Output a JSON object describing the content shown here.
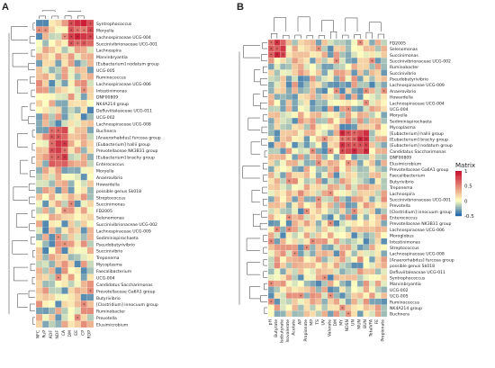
{
  "panels": [
    {
      "letter": "A",
      "columns": [
        "NFC",
        "RuP",
        "ADF",
        "NDF",
        "CA",
        "DM",
        "EE",
        "CP",
        "RDP"
      ],
      "rows": [
        "Syntrophococcus",
        "Moryella",
        "Lachnospiraceae UCG-004",
        "Succinivibrionaceae UCG-001",
        "Lachnospira",
        "Marvinbryantia",
        "[Eubacterium] nodatum group",
        "UCG-005",
        "Ruminococcus",
        "Lachnospiraceae UCG-006",
        "Intestinimonas",
        "DNF00809",
        "NK4A214 group",
        "Defluviitaleaceae UCG-011",
        "UCG-002",
        "Lachnospiraceae UCG-008",
        "Buchnera",
        "[Anaerorhabdus] furcosa group",
        "[Eubacterium] hallii group",
        "Prevotellaceae NK3B31 group",
        "[Eubacterium] brachy group",
        "Enterococcus",
        "Moryella",
        "Anaerovibrio",
        "Howardella",
        "possible genus Sk018",
        "Streptococcus",
        "Succinimonas",
        "FD2005",
        "Selenomonas",
        "Succinivibrionaceae UCG-002",
        "Lachnospiraceae UCG-009",
        "Sediminispirochaeta",
        "Pseudobutyrivibrio",
        "Succinivibrio",
        "Treponema",
        "Mycoplasma",
        "Faecalibacterium",
        "UCG-004",
        "Candidatus Saccharimonas",
        "Prevotellaceae Ga6A1 group",
        "Butyrivibrio",
        "[Clostridium] innocuum group",
        "Ruminobacter",
        "Prevotella",
        "Elusimicrobium"
      ]
    },
    {
      "letter": "B",
      "columns": [
        "pH",
        "Butyrate",
        "Isobutyrate",
        "Isovalerate",
        "Acetate",
        "AP",
        "Propionate",
        "MP",
        "TS",
        "UV",
        "Valerate",
        "DM",
        "MY",
        "NDSN",
        "UN",
        "MUN",
        "BUN",
        "TotalVFA",
        "FE",
        "Propionate"
      ],
      "rows": [
        "FD2005",
        "Selenomonas",
        "Succinimonas",
        "Succinivibrionaceae UCG-002",
        "Ruminobacter",
        "Succinivibrio",
        "Pseudobutyrivibrio",
        "Lachnospiraceae UCG-009",
        "Anaerovibrio",
        "Howardella",
        "Lachnospiraceae UCG-004",
        "UCG-004",
        "Moryella",
        "Sediminispirochaeta",
        "Mycoplasma",
        "[Eubacterium] hallii group",
        "[Eubacterium] brachy group",
        "[Eubacterium] nodatum group",
        "Candidatus Saccharimonas",
        "DNF00809",
        "Elusimicrobium",
        "Prevotellaceae Ga6A1 group",
        "Faecalibacterium",
        "Butyrivibrio",
        "Treponema",
        "Lachnospira",
        "Succinivibrionaceae UCG-001",
        "Prevotella",
        "[Clostridium] innocuum group",
        "Enterococcus",
        "Prevotellaceae NK3B31 group",
        "Lachnospiraceae UCG-006",
        "Moroglobus",
        "Intestinimonas",
        "Streptococcus",
        "Lachnospiraceae UCG-008",
        "[Anaerorhabdus] furcosa group",
        "possible genus Sk018",
        "Defluviitaleaceae UCG-011",
        "Syntrophococcus",
        "Marvinbryantia",
        "UCG-002",
        "UCG-005",
        "Ruminococcus",
        "NK4A214 group",
        "Buchnera"
      ]
    }
  ],
  "legend": {
    "title": "Matrix",
    "ticks": [
      "1",
      "0.5",
      "0",
      "-0.5"
    ],
    "colors": {
      "high": "#c8102e",
      "mid": "#ffffbf",
      "low": "#2166ac"
    }
  },
  "chart_data": [
    {
      "type": "heatmap",
      "panel": "A",
      "x": [
        "NFC",
        "RuP",
        "ADF",
        "NDF",
        "CA",
        "DM",
        "EE",
        "CP",
        "RDP"
      ],
      "y_count": 46,
      "value_range": [
        -0.5,
        1
      ]
    },
    {
      "type": "heatmap",
      "panel": "B",
      "x": [
        "pH",
        "Butyrate",
        "Isobutyrate",
        "Isovalerate",
        "Acetate",
        "AP",
        "Propionate",
        "MP",
        "TS",
        "UV",
        "Valerate",
        "DM",
        "MY",
        "NDSN",
        "UN",
        "MUN",
        "BUN",
        "TotalVFA",
        "FE",
        "Propionate"
      ],
      "y_count": 46,
      "value_range": [
        -0.5,
        1
      ]
    }
  ]
}
